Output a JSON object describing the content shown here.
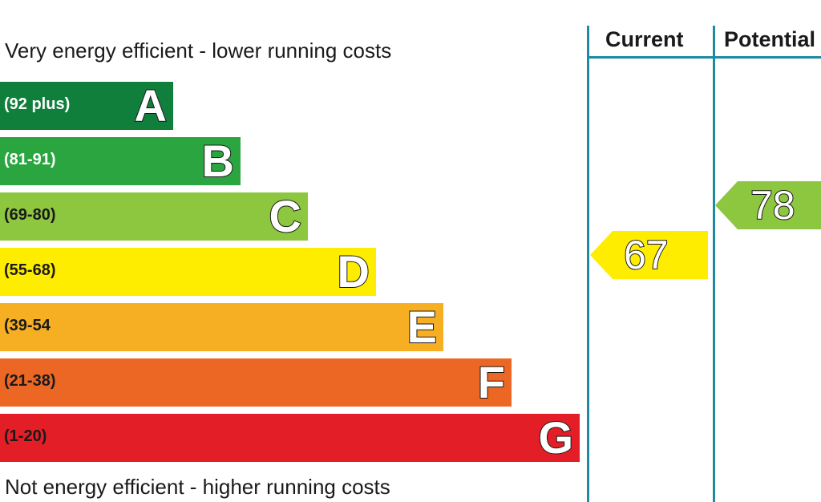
{
  "chart_data": {
    "type": "bar",
    "top_caption": "Very energy efficient - lower running costs",
    "bottom_caption": "Not energy efficient - higher running costs",
    "bands": [
      {
        "letter": "A",
        "range": "(92 plus)",
        "color": "#117f3c",
        "text_color": "#ffffff"
      },
      {
        "letter": "B",
        "range": "(81-91)",
        "color": "#2ba540",
        "text_color": "#ffffff"
      },
      {
        "letter": "C",
        "range": "(69-80)",
        "color": "#8dc63f",
        "text_color": "#1a1a1a"
      },
      {
        "letter": "D",
        "range": "(55-68)",
        "color": "#ffed00",
        "text_color": "#1a1a1a"
      },
      {
        "letter": "E",
        "range": "(39-54",
        "color": "#f6ae23",
        "text_color": "#1a1a1a"
      },
      {
        "letter": "F",
        "range": "(21-38)",
        "color": "#ec6724",
        "text_color": "#1a1a1a"
      },
      {
        "letter": "G",
        "range": "(1-20)",
        "color": "#e31e26",
        "text_color": "#1a1a1a"
      }
    ],
    "columns": [
      {
        "label": "Current",
        "value": "67",
        "band": "D",
        "color": "#ffed00"
      },
      {
        "label": "Potential",
        "value": "78",
        "band": "C",
        "color": "#8dc63f"
      }
    ]
  }
}
